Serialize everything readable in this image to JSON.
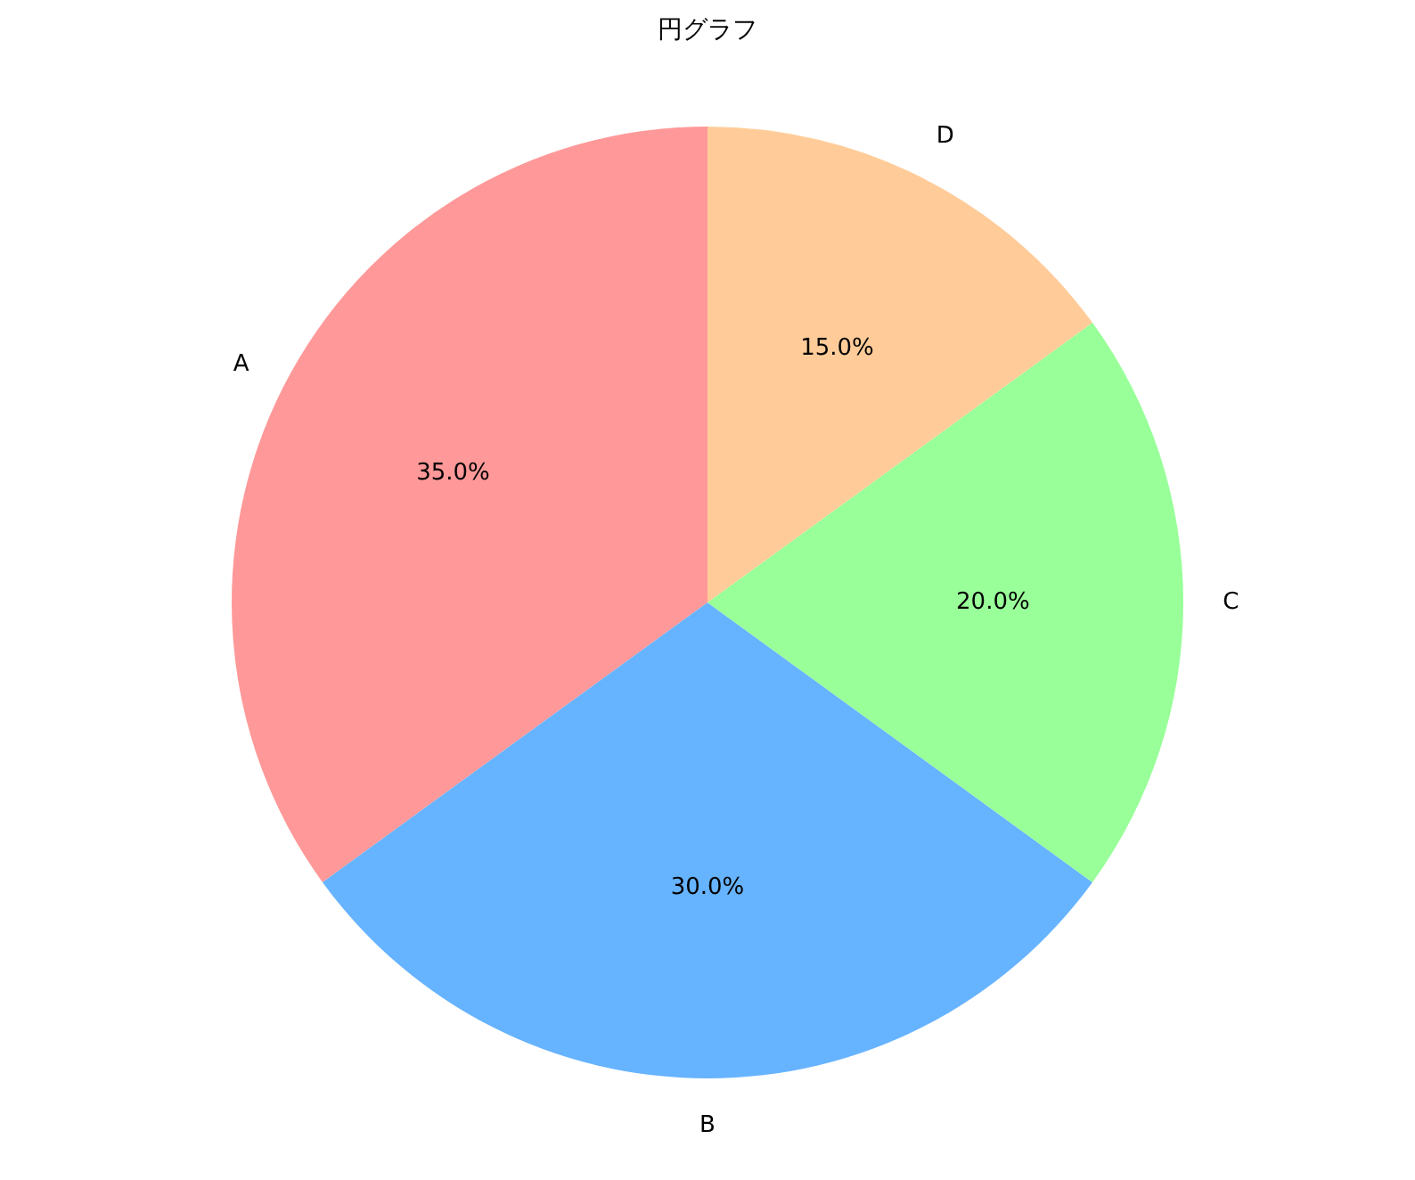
{
  "chart_data": {
    "type": "pie",
    "title": "円グラフ",
    "categories": [
      "A",
      "B",
      "C",
      "D"
    ],
    "values": [
      35,
      30,
      20,
      15
    ],
    "colors": [
      "#ff9999",
      "#66b3ff",
      "#99ff99",
      "#ffcc99"
    ],
    "value_labels": [
      "35.0%",
      "30.0%",
      "20.0%",
      "15.0%"
    ]
  }
}
